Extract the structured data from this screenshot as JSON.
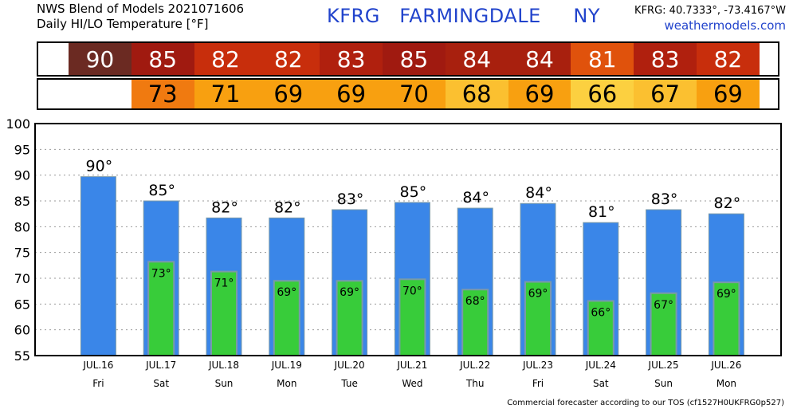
{
  "header": {
    "line1": "NWS Blend of Models 2021071606",
    "line2": "Daily HI/LO Temperature [°F]",
    "station": "KFRG   FARMINGDALE     NY",
    "coords": "KFRG: 40.7333°, -73.4167°W",
    "site": "weathermodels.com"
  },
  "footer": "Commercial forecaster according to our TOS (cf1527H0UKFRG0p527)",
  "hi_strip": {
    "values": [
      "90",
      "85",
      "82",
      "82",
      "83",
      "85",
      "84",
      "84",
      "81",
      "83",
      "82"
    ],
    "colors": [
      "#6b2a22",
      "#a01a10",
      "#c82e0c",
      "#c82e0c",
      "#b0200e",
      "#a01a10",
      "#a8200e",
      "#a8200e",
      "#e0520c",
      "#b0200e",
      "#c82e0c"
    ]
  },
  "lo_strip": {
    "values": [
      "73",
      "71",
      "69",
      "69",
      "70",
      "68",
      "69",
      "66",
      "67",
      "69"
    ],
    "colors": [
      "#f07a10",
      "#f8a010",
      "#f8a010",
      "#f8a010",
      "#f8a010",
      "#fbc030",
      "#f8a010",
      "#fcd040",
      "#fbc030",
      "#f8a010"
    ]
  },
  "colors": {
    "hi_bar": "#3a86e8",
    "lo_bar": "#38cc3a",
    "bar_edge": "#7a9aa8"
  },
  "chart_data": {
    "type": "bar",
    "categories": [
      "JUL.16",
      "JUL.17",
      "JUL.18",
      "JUL.19",
      "JUL.20",
      "JUL.21",
      "JUL.22",
      "JUL.23",
      "JUL.24",
      "JUL.25",
      "JUL.26"
    ],
    "weekdays": [
      "Fri",
      "Sat",
      "Sun",
      "Mon",
      "Tue",
      "Wed",
      "Thu",
      "Fri",
      "Sat",
      "Sun",
      "Mon"
    ],
    "series": [
      {
        "values": [
          89.7,
          85.0,
          81.7,
          81.7,
          83.3,
          84.7,
          83.6,
          84.5,
          80.8,
          83.3,
          82.5
        ]
      },
      {
        "values": [
          null,
          73.2,
          71.3,
          69.5,
          69.5,
          69.8,
          67.8,
          69.3,
          65.6,
          67.1,
          69.2
        ]
      }
    ],
    "hi_labels": [
      "90°",
      "85°",
      "82°",
      "82°",
      "83°",
      "85°",
      "84°",
      "84°",
      "81°",
      "83°",
      "82°"
    ],
    "lo_labels": [
      "",
      "73°",
      "71°",
      "69°",
      "69°",
      "70°",
      "68°",
      "69°",
      "66°",
      "67°",
      "69°"
    ],
    "yticks": [
      "100",
      "95",
      "90",
      "85",
      "80",
      "75",
      "70",
      "65",
      "60",
      "55"
    ],
    "ylim": [
      55,
      100
    ],
    "grid": true
  }
}
